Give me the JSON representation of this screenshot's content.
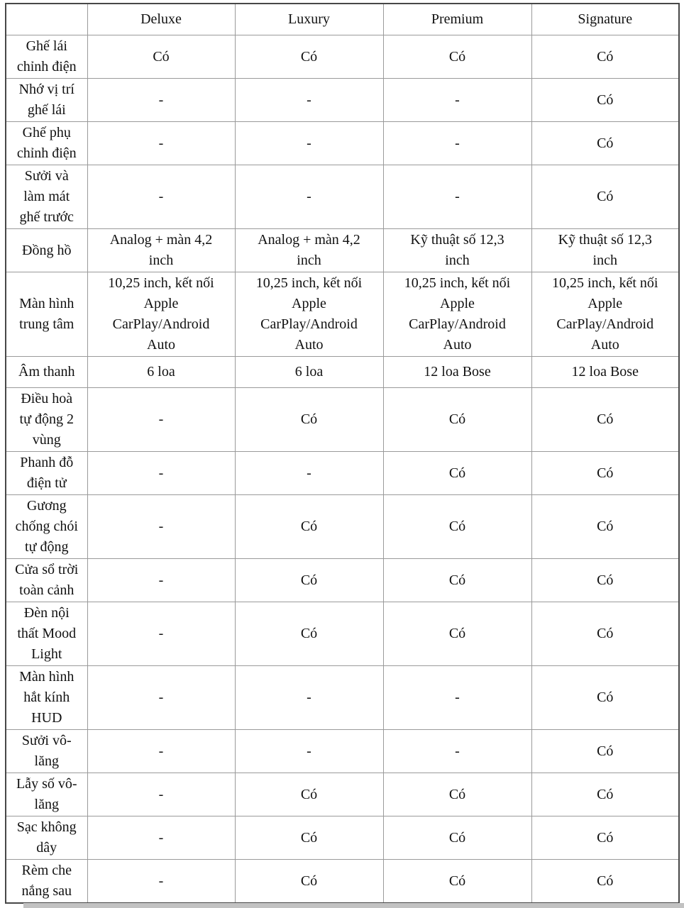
{
  "table": {
    "columns": [
      "",
      "Deluxe",
      "Luxury",
      "Premium",
      "Signature"
    ],
    "rows": [
      {
        "label": "Ghế lái chỉnh điện",
        "values": [
          "Có",
          "Có",
          "Có",
          "Có"
        ]
      },
      {
        "label": "Nhớ vị trí ghế lái",
        "values": [
          "-",
          "-",
          "-",
          "Có"
        ]
      },
      {
        "label": "Ghế phụ chỉnh điện",
        "values": [
          "-",
          "-",
          "-",
          "Có"
        ]
      },
      {
        "label": "Sưởi và làm mát ghế trước",
        "values": [
          "-",
          "-",
          "-",
          "Có"
        ]
      },
      {
        "label": "Đồng hồ",
        "values": [
          "Analog + màn 4,2 inch",
          "Analog + màn 4,2 inch",
          "Kỹ thuật số 12,3 inch",
          "Kỹ thuật số 12,3 inch"
        ]
      },
      {
        "label": "Màn hình trung tâm",
        "values": [
          "10,25 inch, kết nối Apple CarPlay/Android Auto",
          "10,25 inch, kết nối Apple CarPlay/Android Auto",
          "10,25 inch, kết nối Apple CarPlay/Android Auto",
          "10,25 inch, kết nối Apple CarPlay/Android Auto"
        ]
      },
      {
        "label": "Âm thanh",
        "values": [
          "6 loa",
          "6 loa",
          "12 loa Bose",
          "12 loa Bose"
        ]
      },
      {
        "label": "Điều hoà tự động 2 vùng",
        "values": [
          "-",
          "Có",
          "Có",
          "Có"
        ]
      },
      {
        "label": "Phanh đỗ điện tử",
        "values": [
          "-",
          "-",
          "Có",
          "Có"
        ]
      },
      {
        "label": "Gương chống chói tự động",
        "values": [
          "-",
          "Có",
          "Có",
          "Có"
        ]
      },
      {
        "label": "Cửa sổ trời toàn cảnh",
        "values": [
          "-",
          "Có",
          "Có",
          "Có"
        ]
      },
      {
        "label": "Đèn nội thất Mood Light",
        "values": [
          "-",
          "Có",
          "Có",
          "Có"
        ]
      },
      {
        "label": "Màn hình hắt kính HUD",
        "values": [
          "-",
          "-",
          "-",
          "Có"
        ]
      },
      {
        "label": "Sưởi vô-lăng",
        "values": [
          "-",
          "-",
          "-",
          "Có"
        ]
      },
      {
        "label": "Lẫy số vô-lăng",
        "values": [
          "-",
          "Có",
          "Có",
          "Có"
        ]
      },
      {
        "label": "Sạc không dây",
        "values": [
          "-",
          "Có",
          "Có",
          "Có"
        ]
      },
      {
        "label": "Rèm che nắng sau",
        "values": [
          "-",
          "Có",
          "Có",
          "Có"
        ]
      }
    ]
  }
}
